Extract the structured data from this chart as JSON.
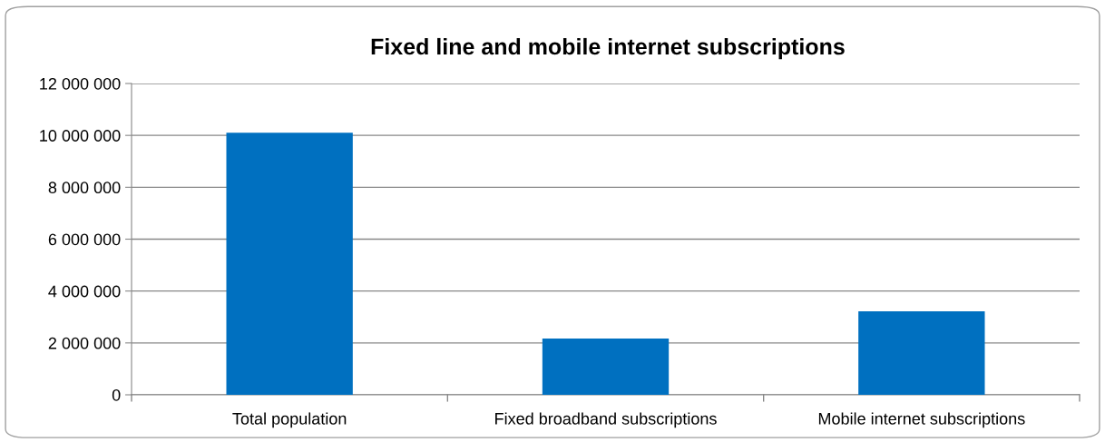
{
  "chart_data": {
    "type": "bar",
    "title": "Fixed line and mobile internet subscriptions",
    "categories": [
      "Total population",
      "Fixed broadband subscriptions",
      "Mobile internet subscriptions"
    ],
    "values": [
      10100000,
      2170000,
      3220000
    ],
    "color": "#0070c0",
    "ylim": [
      0,
      12000000
    ],
    "yticks": [
      {
        "value": 0,
        "label": "0"
      },
      {
        "value": 2000000,
        "label": "2 000 000"
      },
      {
        "value": 4000000,
        "label": "4 000 000"
      },
      {
        "value": 6000000,
        "label": "6 000 000"
      },
      {
        "value": 8000000,
        "label": "8 000 000"
      },
      {
        "value": 10000000,
        "label": "10 000 000"
      },
      {
        "value": 12000000,
        "label": "12 000 000"
      }
    ],
    "grid": "y",
    "legend": false
  }
}
